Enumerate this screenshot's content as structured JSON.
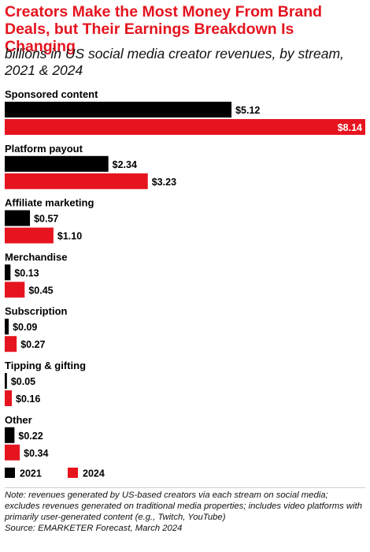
{
  "header": {
    "title": "Creators Make the Most Money From Brand Deals, but Their Earnings Breakdown Is Changing",
    "subtitle": "billions in US social media creator revenues, by stream, 2021 & 2024"
  },
  "footer": {
    "note": "Note: revenues generated by US-based creators via each stream on social media; excludes revenues generated on traditional media properties; includes video platforms with primarily user-generated content (e.g., Twitch, YouTube)",
    "source": "Source: EMARKETER Forecast, March 2024"
  },
  "colors": {
    "series_2021": "#000000",
    "series_2024": "#e5141f"
  },
  "chart_data": {
    "type": "bar",
    "orientation": "horizontal",
    "title": "Creators Make the Most Money From Brand Deals, but Their Earnings Breakdown Is Changing",
    "subtitle": "billions in US social media creator revenues, by stream, 2021 & 2024",
    "categories": [
      "Sponsored content",
      "Platform payout",
      "Affiliate marketing",
      "Merchandise",
      "Subscription",
      "Tipping & gifting",
      "Other"
    ],
    "series": [
      {
        "name": "2021",
        "values": [
          5.12,
          2.34,
          0.57,
          0.13,
          0.09,
          0.05,
          0.22
        ],
        "labels": [
          "$5.12",
          "$2.34",
          "$0.57",
          "$0.13",
          "$0.09",
          "$0.05",
          "$0.22"
        ]
      },
      {
        "name": "2024",
        "values": [
          8.14,
          3.23,
          1.1,
          0.45,
          0.27,
          0.16,
          0.34
        ],
        "labels": [
          "$8.14",
          "$3.23",
          "$1.10",
          "$0.45",
          "$0.27",
          "$0.16",
          "$0.34"
        ]
      }
    ],
    "xlim": [
      0,
      8.14
    ],
    "grid": false,
    "legend_position": "bottom-left"
  }
}
